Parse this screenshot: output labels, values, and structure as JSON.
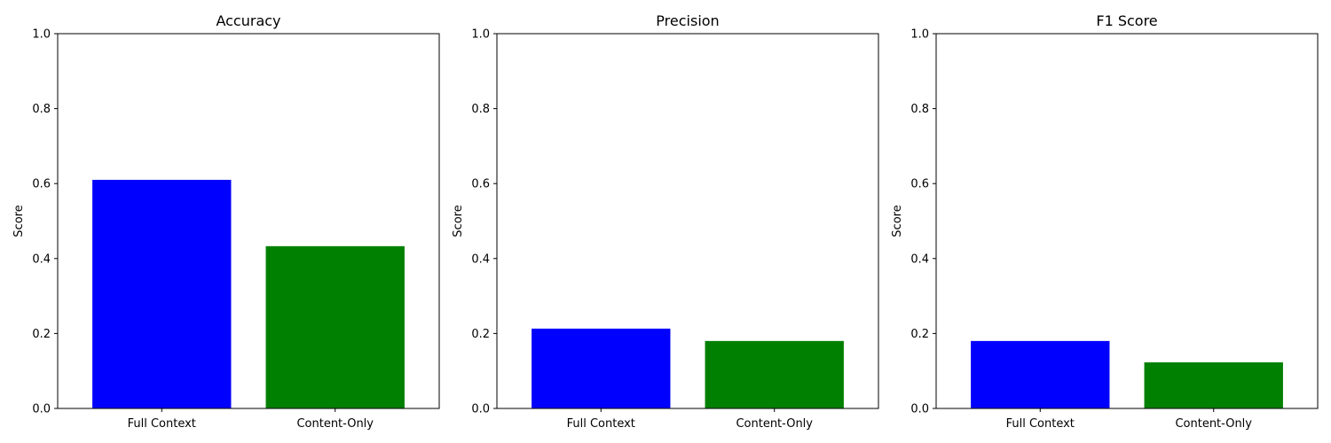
{
  "chart_data": [
    {
      "type": "bar",
      "title": "Accuracy",
      "ylabel": "Score",
      "xlabel": "",
      "categories": [
        "Full Context",
        "Content-Only"
      ],
      "values": [
        0.61,
        0.433
      ],
      "colors": [
        "#0000ff",
        "#008000"
      ],
      "ylim": [
        0,
        1.0
      ],
      "yticks": [
        "0.0",
        "0.2",
        "0.4",
        "0.6",
        "0.8",
        "1.0"
      ],
      "grid": false
    },
    {
      "type": "bar",
      "title": "Precision",
      "ylabel": "Score",
      "xlabel": "",
      "categories": [
        "Full Context",
        "Content-Only"
      ],
      "values": [
        0.213,
        0.18
      ],
      "colors": [
        "#0000ff",
        "#008000"
      ],
      "ylim": [
        0,
        1.0
      ],
      "yticks": [
        "0.0",
        "0.2",
        "0.4",
        "0.6",
        "0.8",
        "1.0"
      ],
      "grid": false
    },
    {
      "type": "bar",
      "title": "F1 Score",
      "ylabel": "Score",
      "xlabel": "",
      "categories": [
        "Full Context",
        "Content-Only"
      ],
      "values": [
        0.18,
        0.123
      ],
      "colors": [
        "#0000ff",
        "#008000"
      ],
      "ylim": [
        0,
        1.0
      ],
      "yticks": [
        "0.0",
        "0.2",
        "0.4",
        "0.6",
        "0.8",
        "1.0"
      ],
      "grid": false
    }
  ]
}
